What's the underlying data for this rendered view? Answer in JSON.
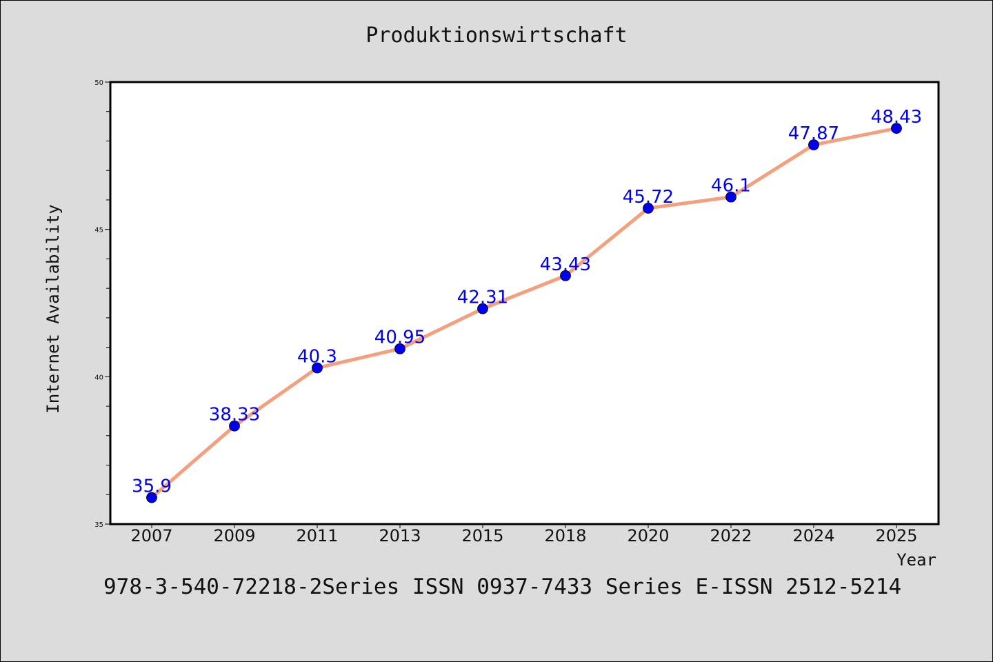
{
  "chart_data": {
    "type": "line",
    "title": "Produktionswirtschaft",
    "xlabel": "Year",
    "ylabel": "Internet Availability",
    "categories": [
      "2007",
      "2009",
      "2011",
      "2013",
      "2015",
      "2018",
      "2020",
      "2022",
      "2024",
      "2025"
    ],
    "series": [
      {
        "values": [
          35.9,
          38.33,
          40.3,
          40.95,
          42.31,
          43.43,
          45.72,
          46.1,
          47.87,
          48.43
        ],
        "value_labels": [
          "35.9",
          "38.33",
          "40.3",
          "40.95",
          "42.31",
          "43.43",
          "45.72",
          "46.1",
          "47.87",
          "48.43"
        ],
        "line_color": "#f4a07e",
        "marker_color": "#0000ee"
      }
    ],
    "ylim": [
      35,
      50
    ],
    "yticks": [
      "35",
      "40",
      "45",
      "50"
    ],
    "grid": false,
    "legend": "none"
  },
  "footer": "978-3-540-72218-2Series ISSN 0937-7433 Series E-ISSN 2512-5214",
  "colors": {
    "background": "#dcdcdc",
    "plot_background": "#ffffff",
    "data_label": "#0000ee"
  }
}
